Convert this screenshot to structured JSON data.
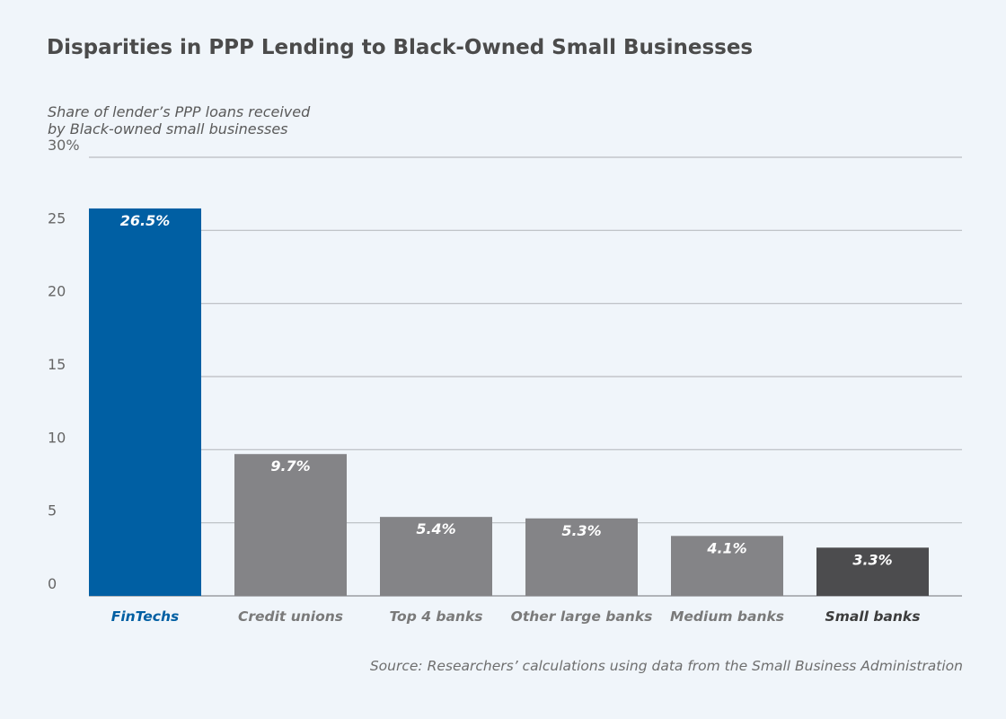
{
  "chart_data": {
    "type": "bar",
    "title": "Disparities in PPP Lending to Black-Owned Small Businesses",
    "ylabel_lines": [
      "Share of lender’s PPP loans received",
      "by Black-owned small businesses"
    ],
    "xlabel": "",
    "categories": [
      "FinTechs",
      "Credit unions",
      "Top 4 banks",
      "Other large banks",
      "Medium banks",
      "Small banks"
    ],
    "values": [
      26.5,
      9.7,
      5.4,
      5.3,
      4.1,
      3.3
    ],
    "value_labels": [
      "26.5%",
      "9.7%",
      "5.4%",
      "5.3%",
      "4.1%",
      "3.3%"
    ],
    "ylim": [
      0,
      30
    ],
    "yticks": [
      0,
      5,
      10,
      15,
      20,
      25,
      30
    ],
    "ytick_labels": [
      "0",
      "5",
      "10",
      "15",
      "20",
      "25",
      "30%"
    ],
    "grid": true,
    "legend": "none",
    "bar_colors": [
      "#005fa3",
      "#848487",
      "#848487",
      "#848487",
      "#848487",
      "#4c4c4e"
    ],
    "category_label_colors": [
      "#005fa3",
      "#7a7a7a",
      "#7a7a7a",
      "#7a7a7a",
      "#7a7a7a",
      "#3c3c3c"
    ],
    "source": "Source: Researchers’ calculations using data from the Small Business Administration"
  }
}
